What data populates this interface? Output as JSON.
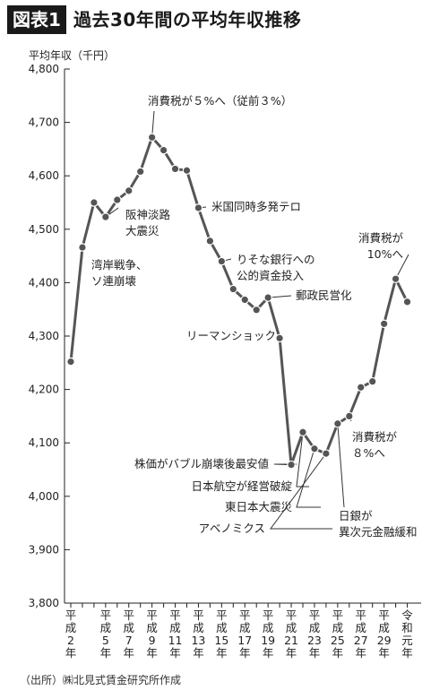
{
  "header": {
    "badge": "図表1",
    "title": "過去30年間の平均年収推移"
  },
  "source": "（出所）㈱北見式賃金研究所作成",
  "chart_data": {
    "type": "line",
    "ylabel": "平均年収（千円）",
    "ylim": [
      3800,
      4800
    ],
    "yticks": [
      3800,
      3900,
      4000,
      4100,
      4200,
      4300,
      4400,
      4500,
      4600,
      4700,
      4800
    ],
    "ytick_labels": [
      "3,800",
      "3,900",
      "4,000",
      "4,100",
      "4,200",
      "4,300",
      "4,400",
      "4,500",
      "4,600",
      "4,700",
      "4,800"
    ],
    "x": [
      2,
      3,
      4,
      5,
      6,
      7,
      8,
      9,
      10,
      11,
      12,
      13,
      14,
      15,
      16,
      17,
      18,
      19,
      20,
      21,
      22,
      23,
      24,
      25,
      26,
      27,
      28,
      29,
      30,
      31
    ],
    "xtick_labels": [
      {
        "x": 2,
        "chars": [
          "平",
          "成",
          "2",
          "年"
        ]
      },
      {
        "x": 5,
        "chars": [
          "平",
          "成",
          "5",
          "年"
        ]
      },
      {
        "x": 7,
        "chars": [
          "平",
          "成",
          "7",
          "年"
        ]
      },
      {
        "x": 9,
        "chars": [
          "平",
          "成",
          "9",
          "年"
        ]
      },
      {
        "x": 11,
        "chars": [
          "平",
          "成",
          "11",
          "年"
        ]
      },
      {
        "x": 13,
        "chars": [
          "平",
          "成",
          "13",
          "年"
        ]
      },
      {
        "x": 15,
        "chars": [
          "平",
          "成",
          "15",
          "年"
        ]
      },
      {
        "x": 17,
        "chars": [
          "平",
          "成",
          "17",
          "年"
        ]
      },
      {
        "x": 19,
        "chars": [
          "平",
          "成",
          "19",
          "年"
        ]
      },
      {
        "x": 21,
        "chars": [
          "平",
          "成",
          "21",
          "年"
        ]
      },
      {
        "x": 23,
        "chars": [
          "平",
          "成",
          "23",
          "年"
        ]
      },
      {
        "x": 25,
        "chars": [
          "平",
          "成",
          "25",
          "年"
        ]
      },
      {
        "x": 27,
        "chars": [
          "平",
          "成",
          "27",
          "年"
        ]
      },
      {
        "x": 29,
        "chars": [
          "平",
          "成",
          "29",
          "年"
        ]
      },
      {
        "x": 31,
        "chars": [
          "令",
          "和",
          "元",
          "年"
        ]
      }
    ],
    "values": [
      4252,
      4466,
      4550,
      4523,
      4555,
      4572,
      4608,
      4672,
      4648,
      4613,
      4610,
      4540,
      4478,
      4440,
      4388,
      4368,
      4349,
      4372,
      4296,
      4059,
      4120,
      4089,
      4080,
      4136,
      4150,
      4204,
      4215,
      4323,
      4407,
      4364
    ],
    "annotations": [
      {
        "x": 3,
        "lines": [
          "湾岸戦争、",
          "ソ連崩壊"
        ]
      },
      {
        "x": 5,
        "lines": [
          "阪神淡路",
          "大震災"
        ]
      },
      {
        "x": 9,
        "lines": [
          "消費税が５%へ（従前３%）"
        ]
      },
      {
        "x": 13,
        "lines": [
          "米国同時多発テロ"
        ]
      },
      {
        "x": 15,
        "lines": [
          "りそな銀行への",
          "公的資金投入"
        ]
      },
      {
        "x": 19,
        "lines": [
          "郵政民営化"
        ]
      },
      {
        "x": 20,
        "lines": [
          "リーマンショック"
        ]
      },
      {
        "x": 21,
        "lines": [
          "株価がバブル崩壊後最安値"
        ]
      },
      {
        "x": 22,
        "lines": [
          "日本航空が経営破綻"
        ]
      },
      {
        "x": 23,
        "lines": [
          "東日本大震災"
        ]
      },
      {
        "x": 24,
        "lines": [
          "アベノミクス"
        ]
      },
      {
        "x": 25,
        "lines": [
          "日銀が",
          "異次元金融緩和"
        ]
      },
      {
        "x": 26,
        "lines": [
          "消費税が",
          "８%へ"
        ]
      },
      {
        "x": 30,
        "lines": [
          "消費税が",
          "10%へ"
        ]
      }
    ]
  }
}
